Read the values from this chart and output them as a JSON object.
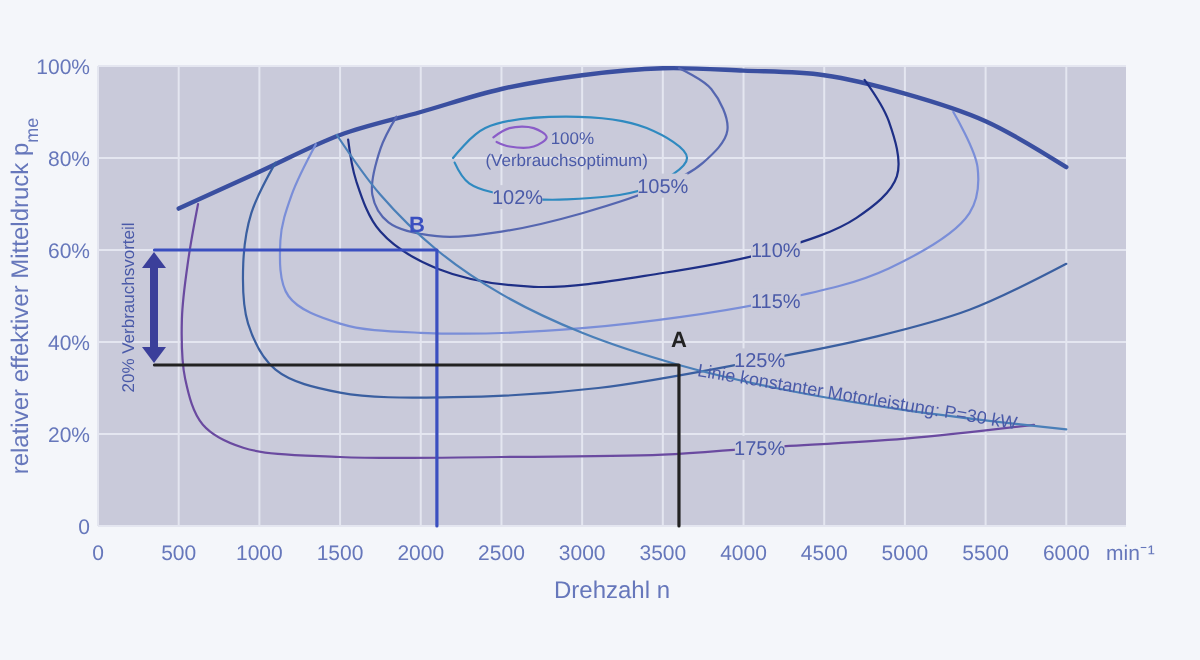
{
  "chart_data": {
    "type": "line",
    "xlabel": "Drehzahl n",
    "ylabel": "relativer effektiver Mitteldruck p$_{me}$",
    "xlim": [
      0,
      6370
    ],
    "ylim": [
      0,
      100
    ],
    "xticks": [
      0,
      500,
      1000,
      1500,
      2000,
      2500,
      3000,
      3500,
      4000,
      4500,
      5000,
      5500,
      6000
    ],
    "yticks": [
      0,
      {
        "value": 20,
        "label": "20%"
      },
      {
        "value": 40,
        "label": "40%"
      },
      {
        "value": 60,
        "label": "60%"
      },
      {
        "value": 80,
        "label": "80%"
      },
      {
        "value": 100,
        "label": "100%"
      }
    ],
    "grid": true,
    "series": [
      {
        "color": "#3a4fa0",
        "x": [
          500,
          1000,
          1500,
          2000,
          2500,
          3000,
          3500,
          4000,
          4500,
          5000,
          5500,
          6000
        ],
        "values": [
          69,
          77,
          85,
          90,
          95,
          98,
          99.5,
          99,
          98,
          94,
          88,
          78
        ]
      },
      {
        "name": "100% (Verbrauchsoptimum)",
        "color": "#8a5cc8",
        "x": [
          2450,
          2550,
          2700,
          2780,
          2700,
          2550,
          2470
        ],
        "values": [
          84.5,
          86.5,
          86.5,
          84.5,
          82.5,
          82.5,
          83.5
        ]
      },
      {
        "name": "102%",
        "color": "#2f8ac0",
        "x": [
          2200,
          2400,
          2900,
          3400,
          3650,
          3400,
          2900,
          2600,
          2300,
          2210
        ],
        "values": [
          80,
          86.5,
          89,
          86.5,
          80,
          73.5,
          71,
          71.5,
          74.5,
          79
        ]
      },
      {
        "name": "105%",
        "color": "#5566b0",
        "x": [
          3600,
          3800,
          3900,
          3750,
          3500,
          3000,
          2500,
          2100,
          1800,
          1700,
          1750,
          1850
        ],
        "values": [
          99.5,
          95,
          86,
          79,
          74,
          68,
          64,
          63,
          66,
          72,
          82,
          89
        ]
      },
      {
        "name": "110%",
        "color": "#1e2f86",
        "x": [
          1550,
          1600,
          1750,
          2100,
          2700,
          3500,
          4200,
          4700,
          4950,
          4900,
          4750
        ],
        "values": [
          84,
          75,
          64,
          56,
          52,
          55,
          60,
          67,
          76,
          88,
          97
        ]
      },
      {
        "name": "115%",
        "color": "#7a8ed8",
        "x": [
          1350,
          1200,
          1130,
          1180,
          1500,
          2000,
          3000,
          4200,
          4900,
          5400,
          5450,
          5300
        ],
        "values": [
          83,
          72,
          62,
          50,
          44,
          42,
          43,
          49,
          56,
          68,
          78,
          90
        ]
      },
      {
        "name": "125%",
        "color": "#3a5fa0",
        "x": [
          1100,
          950,
          900,
          930,
          1100,
          1500,
          2200,
          3100,
          4100,
          4800,
          5400,
          6000
        ],
        "values": [
          79,
          68,
          57,
          44,
          34,
          29,
          28,
          30,
          36,
          41,
          47,
          57
        ]
      },
      {
        "name": "175%",
        "color": "#6a4aa0",
        "x": [
          620,
          560,
          520,
          540,
          650,
          900,
          1500,
          2500,
          3500,
          4100,
          5000,
          5800
        ],
        "values": [
          70,
          58,
          45,
          32,
          22,
          17,
          15,
          15,
          15.5,
          17,
          19,
          22
        ]
      },
      {
        "color": "#4a7fb8",
        "x": [
          1480,
          1750,
          2100,
          2500,
          3000,
          3600,
          4200,
          5000,
          6000
        ],
        "values": [
          85,
          72,
          60,
          50.4,
          42,
          35,
          30,
          25.2,
          21
        ]
      },
      {
        "color": "#3a4fc0",
        "x": [
          350,
          2100,
          2100
        ],
        "values": [
          60,
          60,
          0
        ]
      },
      {
        "color": "#222222",
        "x": [
          350,
          3600,
          3600
        ],
        "values": [
          35,
          35,
          0
        ]
      }
    ],
    "annotations": [
      {
        "text": "B",
        "x": 2100,
        "y": 60
      },
      {
        "text": "A",
        "x": 3600,
        "y": 35
      },
      "20% Verbrauchsvorteil",
      {
        "text": "Linie konstanter Motorleistung: P=30 kW",
        "x": 4700,
        "y": 26.8
      },
      "min⁻¹"
    ]
  }
}
